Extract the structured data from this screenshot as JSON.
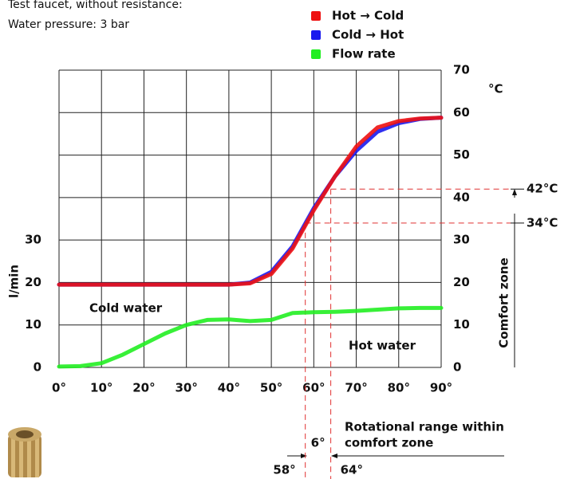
{
  "chart_data": {
    "type": "line",
    "title": "Test faucet, without resistance:",
    "subtitle": "Water pressure: 3 bar",
    "y_unit": "°C",
    "y2_label": "l/min",
    "x": [
      0,
      5,
      10,
      15,
      20,
      25,
      30,
      35,
      40,
      45,
      50,
      55,
      60,
      65,
      70,
      75,
      80,
      85,
      90
    ],
    "xlim": [
      0,
      90
    ],
    "xticks": [
      {
        "value": 0,
        "label": "0°"
      },
      {
        "value": 10,
        "label": "10°"
      },
      {
        "value": 20,
        "label": "20°"
      },
      {
        "value": 30,
        "label": "30°"
      },
      {
        "value": 40,
        "label": "40°"
      },
      {
        "value": 50,
        "label": "50°"
      },
      {
        "value": 60,
        "label": "60°"
      },
      {
        "value": 70,
        "label": "70°"
      },
      {
        "value": 80,
        "label": "80°"
      },
      {
        "value": 90,
        "label": "90°"
      }
    ],
    "ylim": [
      0,
      70
    ],
    "yticks": [
      0,
      10,
      20,
      30,
      40,
      50,
      60,
      70
    ],
    "y2lim": [
      0,
      70
    ],
    "y2ticks": [
      0,
      10,
      20,
      30
    ],
    "grid": true,
    "series": [
      {
        "name": "Hot → Cold",
        "color": "#ee1111",
        "values": [
          19.5,
          19.5,
          19.5,
          19.5,
          19.5,
          19.5,
          19.5,
          19.5,
          19.5,
          19.8,
          22,
          28,
          37,
          45,
          52,
          56.5,
          58,
          58.6,
          58.8
        ]
      },
      {
        "name": "Cold → Hot",
        "color": "#1a1aee",
        "values": [
          19.5,
          19.5,
          19.5,
          19.5,
          19.5,
          19.5,
          19.5,
          19.5,
          19.5,
          20,
          22.5,
          28.5,
          37.5,
          45,
          51,
          55.5,
          57.5,
          58.5,
          58.8
        ]
      },
      {
        "name": "Flow rate",
        "color": "#22ee22",
        "axis": "y2",
        "values": [
          0.2,
          0.3,
          1,
          3,
          5.5,
          8,
          10,
          11.2,
          11.3,
          10.9,
          11.2,
          12.8,
          13,
          13.1,
          13.3,
          13.6,
          13.9,
          14,
          14
        ]
      }
    ],
    "annotations": {
      "cold_water": "Cold water",
      "hot_water": "Hot water",
      "comfort_zone": "Comfort zone",
      "comfort_temps": [
        {
          "value": 42,
          "label": "42°C"
        },
        {
          "value": 34,
          "label": "34°C"
        }
      ],
      "comfort_angles": [
        {
          "value": 58,
          "label": "58°"
        },
        {
          "value": 64,
          "label": "64°"
        }
      ],
      "range_width": "6°",
      "range_text": [
        "Rotational range within",
        "comfort zone"
      ]
    }
  }
}
